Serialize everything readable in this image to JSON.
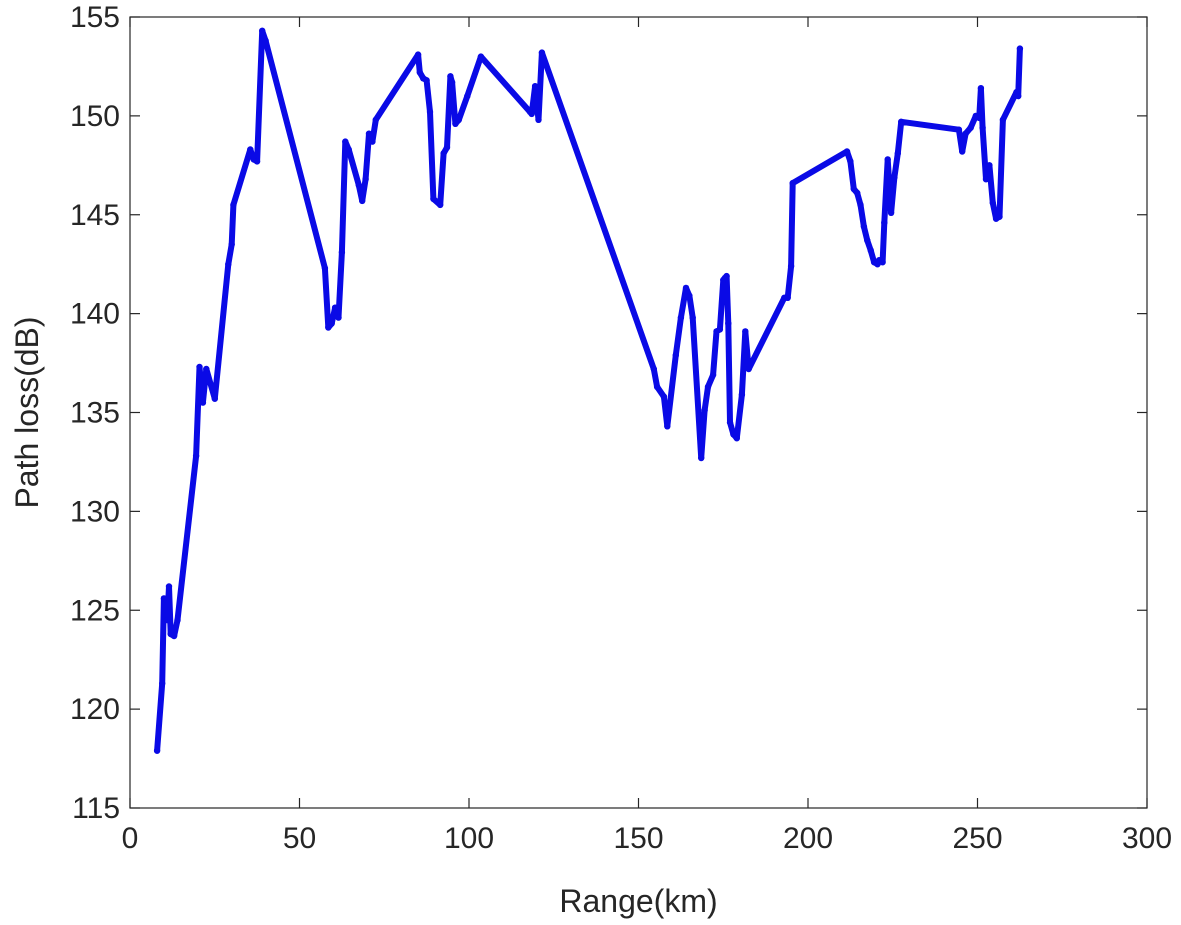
{
  "chart_data": {
    "type": "line",
    "title": "",
    "xlabel": "Range(km)",
    "ylabel": "Path loss(dB)",
    "xlim": [
      0,
      300
    ],
    "ylim": [
      115,
      155
    ],
    "xticks": [
      0,
      50,
      100,
      150,
      200,
      250,
      300
    ],
    "yticks": [
      115,
      120,
      125,
      130,
      135,
      140,
      145,
      150,
      155
    ],
    "grid": false,
    "legend": "none",
    "colors": {
      "line": "#0a0ae6",
      "axis": "#262626",
      "background": "#ffffff"
    },
    "series": [
      {
        "x": [
          8,
          9.5,
          10,
          11,
          11.5,
          12,
          13,
          14,
          19.5,
          20.5,
          21.5,
          22.5,
          25,
          29,
          30,
          30.5,
          35.5,
          36.5,
          37.5,
          39,
          40,
          57.5,
          58.5,
          59.5,
          60.5,
          61.5,
          62.5,
          63.5,
          64.5,
          67.5,
          68.5,
          69.5,
          70.5,
          71.5,
          72.5,
          85,
          85.5,
          86.5,
          87.5,
          88.5,
          89.5,
          91.5,
          92.5,
          93.5,
          94.5,
          95,
          96,
          97,
          99.5,
          103.5,
          118,
          118.5,
          119.5,
          120.5,
          121.5,
          154.5,
          155.5,
          157.5,
          158.5,
          161,
          162.5,
          164,
          165,
          166,
          168.5,
          169.5,
          170.5,
          172,
          173,
          174,
          175,
          175.5,
          176,
          176.5,
          177,
          178,
          179,
          180.5,
          181.5,
          182.5,
          193,
          194,
          195,
          195.5,
          211.5,
          212.5,
          213.5,
          214.5,
          215.5,
          216.5,
          217.5,
          218.5,
          219.5,
          220.5,
          221,
          222,
          222.5,
          223.5,
          224.5,
          225.5,
          226.5,
          227.5,
          244.5,
          245.5,
          246.5,
          248,
          249.5,
          250.5,
          251,
          251.5,
          252.5,
          253.5,
          254.5,
          255.5,
          256.5,
          257.5,
          261.5,
          262,
          262.5
        ],
        "y": [
          117.9,
          121.3,
          125.6,
          124.5,
          126.2,
          123.8,
          123.7,
          124.5,
          132.8,
          137.3,
          135.5,
          137.2,
          135.7,
          142.5,
          143.5,
          145.5,
          148.3,
          147.8,
          147.7,
          154.3,
          153.8,
          142.3,
          139.3,
          139.5,
          140.3,
          139.8,
          143.1,
          148.7,
          148.3,
          146.5,
          145.7,
          146.8,
          149.1,
          148.7,
          149.8,
          153.1,
          152.2,
          151.9,
          151.8,
          150.2,
          145.8,
          145.5,
          148.1,
          148.4,
          152,
          151.7,
          149.6,
          149.8,
          151,
          153,
          150.2,
          150.1,
          151.5,
          149.8,
          153.2,
          137.2,
          136.3,
          135.8,
          134.3,
          137.9,
          139.8,
          141.3,
          140.9,
          139.8,
          132.7,
          135.1,
          136.3,
          136.9,
          139.1,
          139.2,
          141.7,
          141.8,
          141.9,
          139.5,
          134.5,
          133.9,
          133.7,
          135.9,
          139.1,
          137.2,
          140.8,
          140.8,
          142.4,
          146.6,
          148.2,
          147.7,
          146.3,
          146.1,
          145.5,
          144.4,
          143.7,
          143.2,
          142.6,
          142.5,
          142.7,
          142.6,
          144.6,
          147.8,
          145.1,
          146.9,
          148.1,
          149.7,
          149.3,
          148.2,
          149.1,
          149.4,
          150,
          149.9,
          151.4,
          149.4,
          146.8,
          147.5,
          145.6,
          144.8,
          144.9,
          149.8,
          151.2,
          151,
          153.4
        ]
      }
    ]
  }
}
